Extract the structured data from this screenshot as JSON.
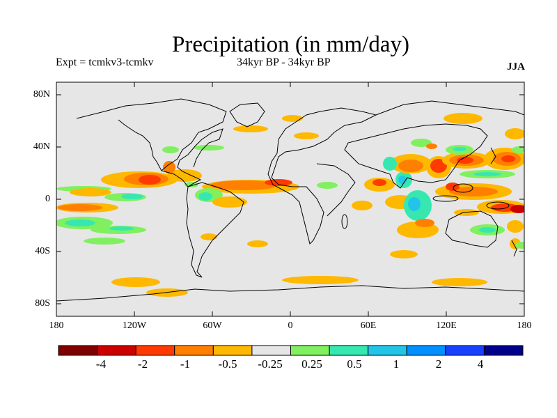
{
  "title": "Precipitation (in mm/day)",
  "subtitle_left": "Expt = tcmkv3-tcmkv",
  "subtitle_center": "34kyr BP - 34kyr BP",
  "season": "JJA",
  "lat_labels": [
    "80N",
    "40N",
    "0",
    "40S",
    "80S"
  ],
  "lon_labels": [
    "180",
    "120W",
    "60W",
    "0",
    "60E",
    "120E",
    "180"
  ],
  "colorbar": {
    "colors": [
      "#800000",
      "#cc0000",
      "#ff3a00",
      "#ff8000",
      "#ffb800",
      "#e6e6e6",
      "#80f060",
      "#36e8b0",
      "#22c4e8",
      "#0090ff",
      "#1a40ff",
      "#00008b"
    ],
    "labels": [
      "-4",
      "-2",
      "-1",
      "-0.5",
      "-0.25",
      "0.25",
      "0.5",
      "1",
      "2",
      "4"
    ]
  },
  "colors": {
    "ocean_land": "#e6e6e6",
    "coast": "#000000",
    "orange": "#ffb800",
    "red_orange": "#ff8000",
    "red": "#ff3a00",
    "dark_red": "#cc0000",
    "green": "#80f060",
    "cyan": "#36e8b0",
    "blue": "#22c4e8"
  }
}
